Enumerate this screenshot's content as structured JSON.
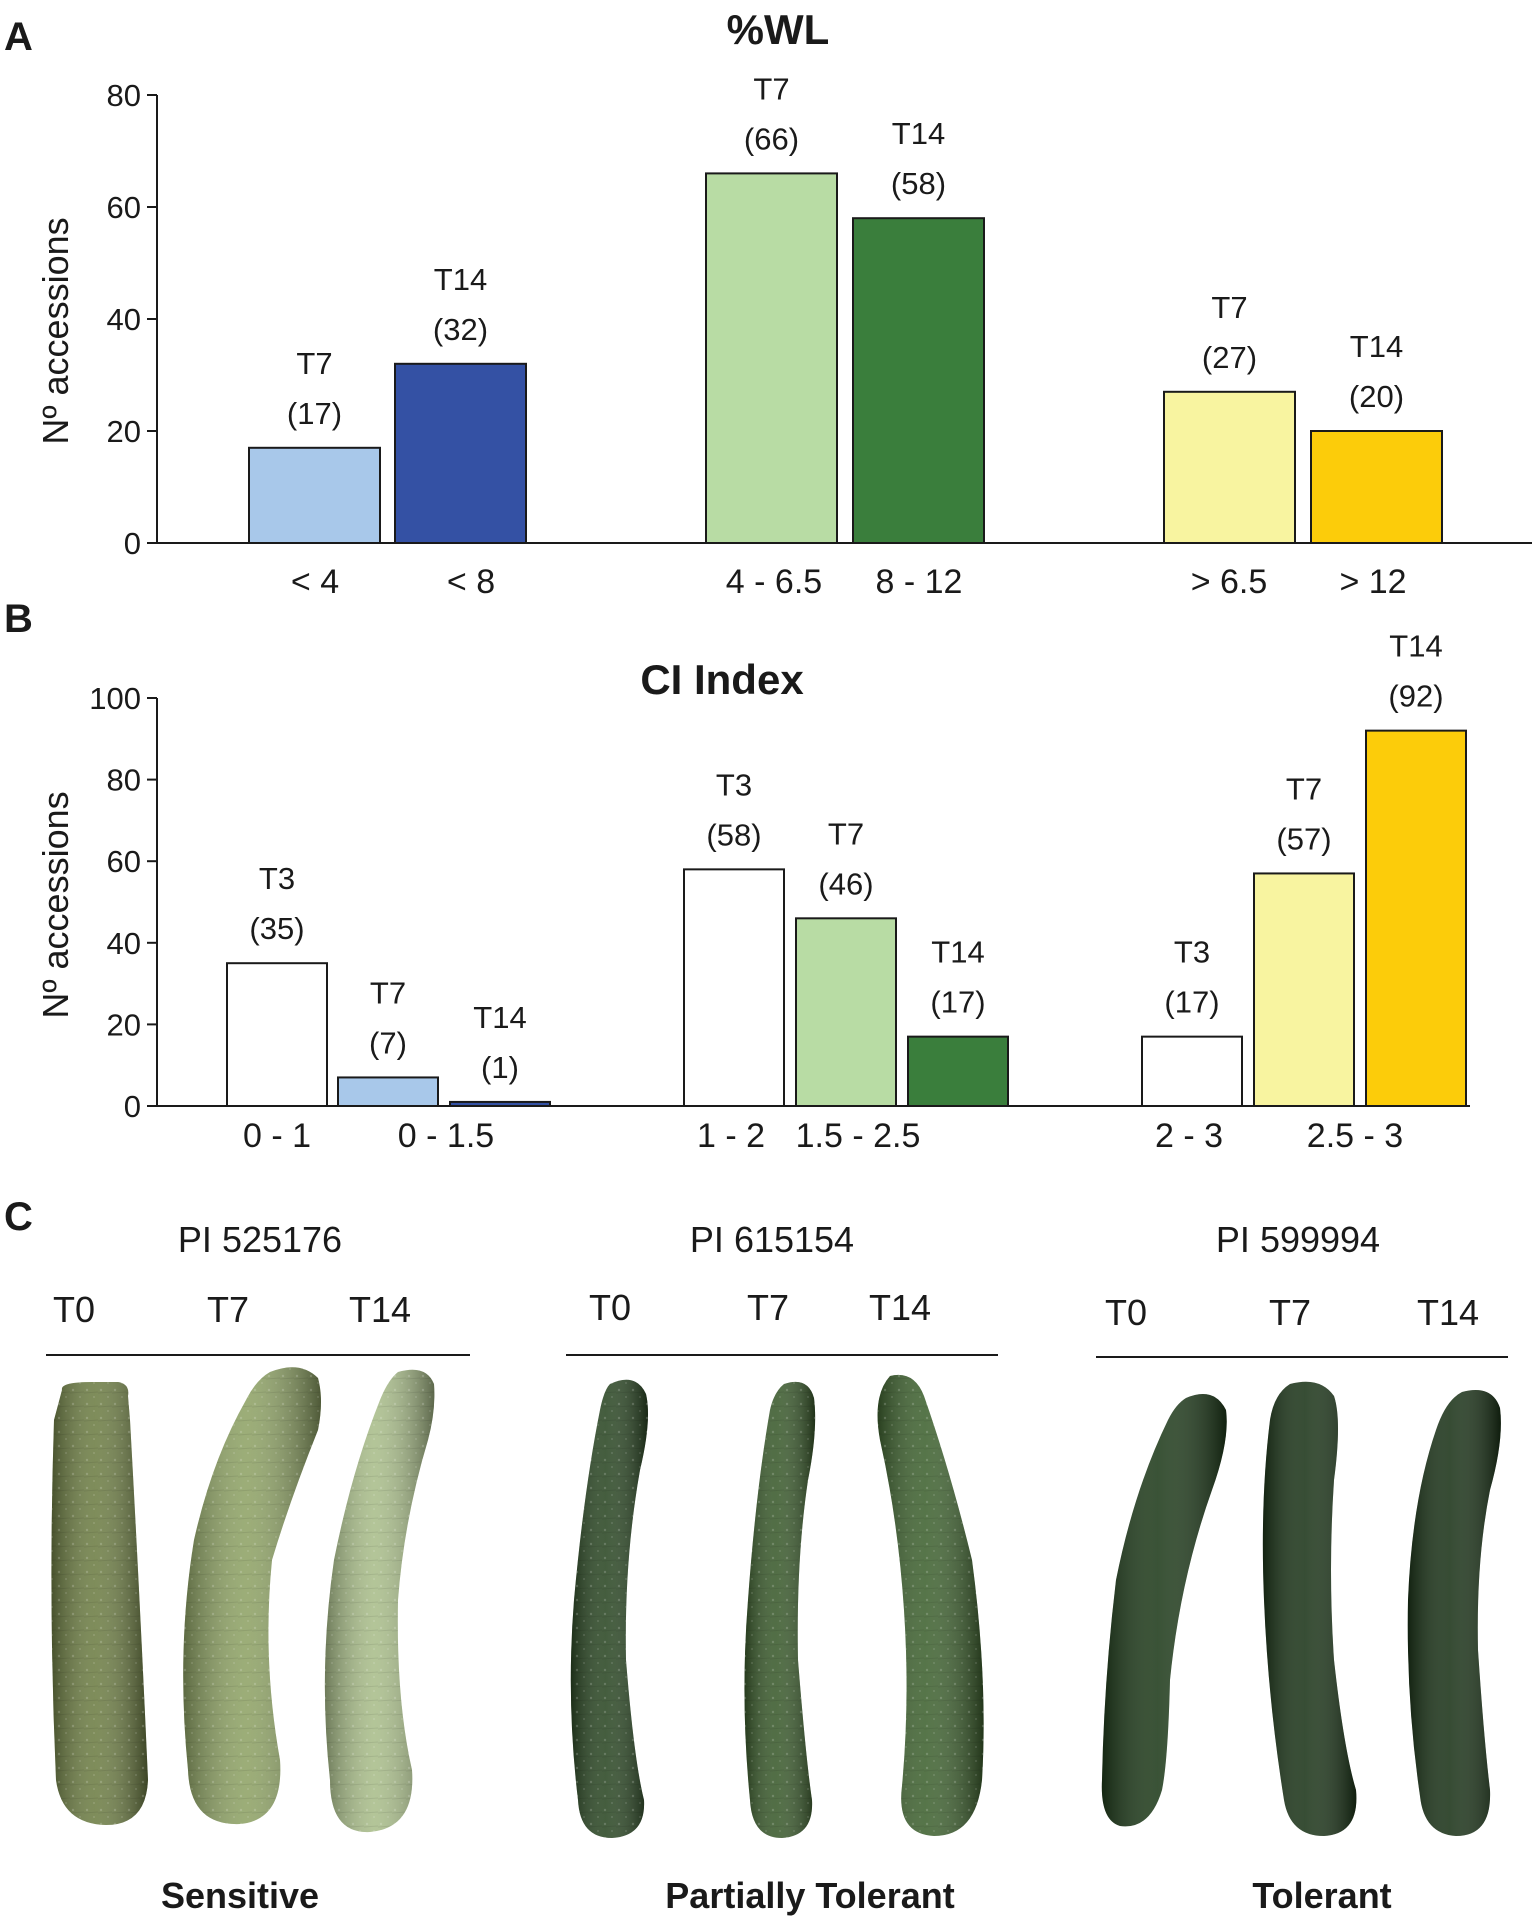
{
  "panels": {
    "a": "A",
    "b": "B",
    "c": "C"
  },
  "chart_data": [
    {
      "type": "bar",
      "title": "%WL",
      "ylabel": "Nº accessions",
      "ylim": [
        0,
        80
      ],
      "yticks": [
        0,
        20,
        40,
        60,
        80
      ],
      "grid": false,
      "bars": [
        {
          "category": "< 4",
          "series": "T7",
          "value": 17,
          "label": "(17)",
          "color": "#a8c8ea"
        },
        {
          "category": "< 8",
          "series": "T14",
          "value": 32,
          "label": "(32)",
          "color": "#3451a4"
        },
        {
          "category": "4 - 6.5",
          "series": "T7",
          "value": 66,
          "label": "(66)",
          "color": "#b8dca4"
        },
        {
          "category": "8 - 12",
          "series": "T14",
          "value": 58,
          "label": "(58)",
          "color": "#3a7e3c"
        },
        {
          "category": "> 6.5",
          "series": "T7",
          "value": 27,
          "label": "(27)",
          "color": "#f8f4a0"
        },
        {
          "category": "> 12",
          "series": "T14",
          "value": 20,
          "label": "(20)",
          "color": "#fccc0a"
        }
      ]
    },
    {
      "type": "bar",
      "title": "CI Index",
      "ylabel": "Nº accessions",
      "ylim": [
        0,
        100
      ],
      "yticks": [
        0,
        20,
        40,
        60,
        80,
        100
      ],
      "grid": false,
      "bars": [
        {
          "category": "0 - 1",
          "series": "T3",
          "value": 35,
          "label": "(35)",
          "color": "#ffffff"
        },
        {
          "category": "0 - 1.5",
          "series": "T7",
          "value": 7,
          "label": "(7)",
          "color": "#a8c8ea"
        },
        {
          "category": "",
          "series": "T14",
          "value": 1,
          "label": "(1)",
          "color": "#3451a4"
        },
        {
          "category": "1 - 2",
          "series": "T3",
          "value": 58,
          "label": "(58)",
          "color": "#ffffff"
        },
        {
          "category": "1.5 - 2.5",
          "series": "T7",
          "value": 46,
          "label": "(46)",
          "color": "#b8dca4"
        },
        {
          "category": "",
          "series": "T14",
          "value": 17,
          "label": "(17)",
          "color": "#3a7e3c"
        },
        {
          "category": "2 - 3",
          "series": "T3",
          "value": 17,
          "label": "(17)",
          "color": "#ffffff"
        },
        {
          "category": "2.5 - 3",
          "series": "T7",
          "value": 57,
          "label": "(57)",
          "color": "#f8f4a0"
        },
        {
          "category": "",
          "series": "T14",
          "value": 92,
          "label": "(92)",
          "color": "#fccc0a"
        }
      ]
    }
  ],
  "photos": {
    "groups": [
      {
        "accession": "PI 525176",
        "timepoints": [
          "T0",
          "T7",
          "T14"
        ],
        "class": "Sensitive",
        "colors": [
          "#6d7d44",
          "#8ea265",
          "#a9bd8a"
        ]
      },
      {
        "accession": "PI 615154",
        "timepoints": [
          "T0",
          "T7",
          "T14"
        ],
        "class": "Partially Tolerant",
        "colors": [
          "#2b4724",
          "#3a5a2c",
          "#3f6230"
        ]
      },
      {
        "accession": "PI 599994",
        "timepoints": [
          "T0",
          "T7",
          "T14"
        ],
        "class": "Tolerant",
        "colors": [
          "#1f3b1b",
          "#1c3519",
          "#1b3318"
        ]
      }
    ]
  }
}
